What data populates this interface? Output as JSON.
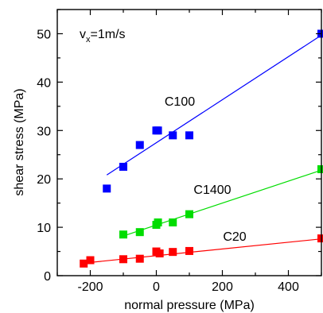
{
  "chart_data": {
    "type": "scatter",
    "title": "",
    "xlabel": "normal pressure (MPa)",
    "ylabel": "shear stress (MPa)",
    "xlim": [
      -300,
      500
    ],
    "ylim": [
      0,
      55
    ],
    "x_ticks": [
      -200,
      0,
      200,
      400
    ],
    "y_ticks": [
      0,
      10,
      20,
      30,
      40,
      50
    ],
    "grid": false,
    "legend": "none",
    "annotation": {
      "main": "v",
      "sub": "x",
      "rest": "=1m/s"
    },
    "series": [
      {
        "name": "C100",
        "color": "#0000ff",
        "marker": "square",
        "points": [
          [
            -150,
            18
          ],
          [
            -100,
            22.5
          ],
          [
            -50,
            27
          ],
          [
            0,
            30
          ],
          [
            5,
            30
          ],
          [
            50,
            29
          ],
          [
            100,
            29
          ],
          [
            500,
            50
          ]
        ],
        "fit": [
          [
            -150,
            20.8
          ],
          [
            500,
            49.7
          ]
        ]
      },
      {
        "name": "C1400",
        "color": "#00dd00",
        "marker": "square",
        "points": [
          [
            -100,
            8.5
          ],
          [
            -50,
            9
          ],
          [
            0,
            10.5
          ],
          [
            5,
            11
          ],
          [
            50,
            11
          ],
          [
            100,
            12.7
          ],
          [
            500,
            22
          ]
        ],
        "fit": [
          [
            -100,
            8.2
          ],
          [
            500,
            21.8
          ]
        ]
      },
      {
        "name": "C20",
        "color": "#ff0000",
        "marker": "square",
        "points": [
          [
            -220,
            2.5
          ],
          [
            -200,
            3.2
          ],
          [
            -100,
            3.4
          ],
          [
            -50,
            3.5
          ],
          [
            0,
            5
          ],
          [
            10,
            4.6
          ],
          [
            50,
            4.9
          ],
          [
            100,
            5.1
          ],
          [
            500,
            7.7
          ]
        ],
        "fit": [
          [
            -220,
            2.6
          ],
          [
            500,
            7.6
          ]
        ]
      }
    ]
  }
}
